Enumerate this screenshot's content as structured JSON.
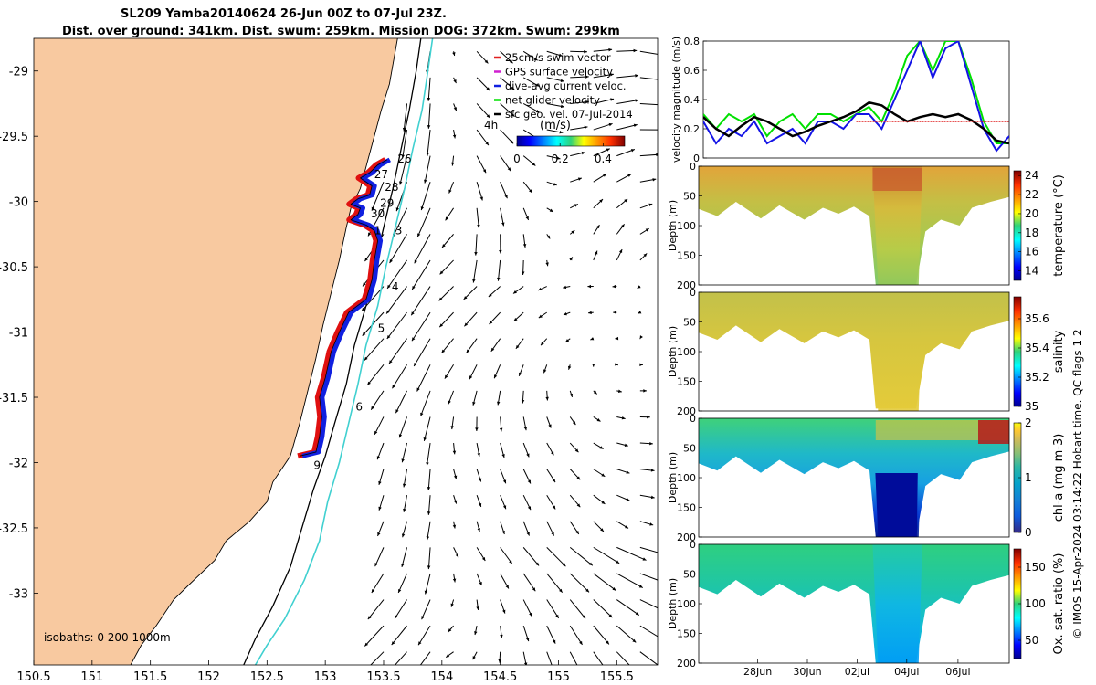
{
  "header": {
    "title_line1": "SL209 Yamba20140624 26-Jun 00Z to 07-Jul 23Z.",
    "title_line2": "Dist. over ground: 341km. Dist. swum: 259km. Mission DOG: 372km. Swum: 299km"
  },
  "colors": {
    "land": "#f8c9a0",
    "track_red": "#e01010",
    "track_blue": "#1020e0",
    "isobath_cyan": "#40d0d0",
    "net_velocity_green": "#00e000",
    "surface_velocity_blue": "#1414e6",
    "dive_avg_black": "#000000",
    "swim_red": "#e02020"
  },
  "chart_data": [
    {
      "type": "scatter",
      "id": "map",
      "x_ticks": [
        "150.5",
        "151",
        "151.5",
        "152",
        "152.5",
        "153",
        "153.5",
        "154",
        "154.5",
        "155",
        "155.5"
      ],
      "y_ticks": [
        "-29",
        "-29.5",
        "-30",
        "-30.5",
        "-31",
        "-31.5",
        "-32",
        "-32.5",
        "-33"
      ],
      "xlim": [
        150.5,
        155.85
      ],
      "ylim": [
        -33.55,
        -28.75
      ],
      "legend_items": [
        "25cm/s swim vector",
        "GPS surface velocity",
        "dive-avg current veloc.",
        "net glider velocity",
        "sfc geo. vel. 07-Jul-2014"
      ],
      "legend_colors": [
        "#e02020",
        "#d020d0",
        "#1020e0",
        "#00e000",
        "#000000"
      ],
      "colorbar_label": "(m/s)",
      "colorbar_ticks": [
        "0",
        "0.2",
        "0.4"
      ],
      "isobaths_label": "isobaths: 0   200  1000m",
      "scale_label": "4h",
      "track": [
        [
          153.53,
          -29.68
        ],
        [
          153.45,
          -29.72
        ],
        [
          153.38,
          -29.78
        ],
        [
          153.3,
          -29.82
        ],
        [
          153.4,
          -29.88
        ],
        [
          153.38,
          -29.95
        ],
        [
          153.28,
          -29.98
        ],
        [
          153.22,
          -30.02
        ],
        [
          153.3,
          -30.05
        ],
        [
          153.28,
          -30.1
        ],
        [
          153.22,
          -30.14
        ],
        [
          153.35,
          -30.18
        ],
        [
          153.42,
          -30.22
        ],
        [
          153.45,
          -30.3
        ],
        [
          153.42,
          -30.45
        ],
        [
          153.4,
          -30.6
        ],
        [
          153.35,
          -30.75
        ],
        [
          153.2,
          -30.85
        ],
        [
          153.12,
          -31.0
        ],
        [
          153.05,
          -31.15
        ],
        [
          153.0,
          -31.35
        ],
        [
          152.95,
          -31.5
        ],
        [
          152.97,
          -31.65
        ],
        [
          152.95,
          -31.8
        ],
        [
          152.92,
          -31.92
        ],
        [
          152.78,
          -31.95
        ]
      ],
      "day_labels": [
        {
          "label": "26",
          "lon": 153.62,
          "lat": -29.7
        },
        {
          "label": "27",
          "lon": 153.42,
          "lat": -29.82
        },
        {
          "label": "28",
          "lon": 153.51,
          "lat": -29.92
        },
        {
          "label": "29",
          "lon": 153.47,
          "lat": -30.04
        },
        {
          "label": "30",
          "lon": 153.39,
          "lat": -30.12
        },
        {
          "label": "1",
          "lon": 153.42,
          "lat": -30.25
        },
        {
          "label": "3",
          "lon": 153.6,
          "lat": -30.25
        },
        {
          "label": "4",
          "lon": 153.57,
          "lat": -30.68
        },
        {
          "label": "5",
          "lon": 153.45,
          "lat": -31.0
        },
        {
          "label": "6",
          "lon": 153.26,
          "lat": -31.6
        },
        {
          "label": "9",
          "lon": 152.9,
          "lat": -32.05
        }
      ],
      "coast": [
        [
          153.62,
          -28.75
        ],
        [
          153.58,
          -28.95
        ],
        [
          153.55,
          -29.1
        ],
        [
          153.48,
          -29.3
        ],
        [
          153.42,
          -29.5
        ],
        [
          153.36,
          -29.7
        ],
        [
          153.3,
          -29.9
        ],
        [
          153.22,
          -30.05
        ],
        [
          153.18,
          -30.2
        ],
        [
          153.12,
          -30.45
        ],
        [
          153.05,
          -30.7
        ],
        [
          152.98,
          -30.95
        ],
        [
          152.92,
          -31.2
        ],
        [
          152.85,
          -31.45
        ],
        [
          152.78,
          -31.7
        ],
        [
          152.7,
          -31.95
        ],
        [
          152.55,
          -32.15
        ],
        [
          152.5,
          -32.3
        ],
        [
          152.35,
          -32.45
        ],
        [
          152.15,
          -32.6
        ],
        [
          152.05,
          -32.75
        ],
        [
          151.85,
          -32.92
        ],
        [
          151.7,
          -33.05
        ],
        [
          151.55,
          -33.25
        ],
        [
          151.42,
          -33.4
        ],
        [
          151.33,
          -33.55
        ]
      ],
      "isobath_200": [
        [
          153.82,
          -28.75
        ],
        [
          153.78,
          -29.0
        ],
        [
          153.72,
          -29.3
        ],
        [
          153.65,
          -29.6
        ],
        [
          153.58,
          -29.9
        ],
        [
          153.5,
          -30.2
        ],
        [
          153.42,
          -30.5
        ],
        [
          153.35,
          -30.8
        ],
        [
          153.25,
          -31.1
        ],
        [
          153.18,
          -31.4
        ],
        [
          153.08,
          -31.7
        ],
        [
          153.0,
          -31.95
        ],
        [
          152.9,
          -32.2
        ],
        [
          152.8,
          -32.5
        ],
        [
          152.7,
          -32.8
        ],
        [
          152.55,
          -33.1
        ],
        [
          152.4,
          -33.35
        ],
        [
          152.3,
          -33.55
        ]
      ],
      "isobath_1000": [
        [
          153.92,
          -28.75
        ],
        [
          153.88,
          -29.0
        ],
        [
          153.83,
          -29.3
        ],
        [
          153.75,
          -29.6
        ],
        [
          153.68,
          -29.9
        ],
        [
          153.6,
          -30.2
        ],
        [
          153.52,
          -30.5
        ],
        [
          153.45,
          -30.8
        ],
        [
          153.35,
          -31.1
        ],
        [
          153.28,
          -31.4
        ],
        [
          153.2,
          -31.7
        ],
        [
          153.12,
          -32.0
        ],
        [
          153.02,
          -32.3
        ],
        [
          152.95,
          -32.6
        ],
        [
          152.82,
          -32.9
        ],
        [
          152.65,
          -33.2
        ],
        [
          152.5,
          -33.4
        ],
        [
          152.4,
          -33.55
        ]
      ]
    },
    {
      "type": "line",
      "id": "velocity",
      "ylabel": "velocity magnitude (m/s)",
      "ylim": [
        0,
        0.8
      ],
      "y_ticks": [
        "0",
        "0.2",
        "0.4",
        "0.6",
        "0.8"
      ],
      "xlim_days": [
        0,
        12
      ],
      "series": [
        {
          "color": "#00e000",
          "x": [
            0,
            0.5,
            1,
            1.5,
            2,
            2.5,
            3,
            3.5,
            4,
            4.5,
            5,
            5.5,
            6,
            6.5,
            7,
            7.5,
            8,
            8.5,
            9,
            9.5,
            10,
            10.5,
            11,
            11.5,
            12
          ],
          "values": [
            0.3,
            0.2,
            0.3,
            0.25,
            0.3,
            0.15,
            0.25,
            0.3,
            0.2,
            0.3,
            0.3,
            0.25,
            0.3,
            0.35,
            0.25,
            0.45,
            0.7,
            0.8,
            0.6,
            0.8,
            0.8,
            0.55,
            0.25,
            0.1,
            0.1
          ]
        },
        {
          "color": "#1414e6",
          "x": [
            0,
            0.5,
            1,
            1.5,
            2,
            2.5,
            3,
            3.5,
            4,
            4.5,
            5,
            5.5,
            6,
            6.5,
            7,
            7.5,
            8,
            8.5,
            9,
            9.5,
            10,
            10.5,
            11,
            11.5,
            12
          ],
          "values": [
            0.25,
            0.1,
            0.2,
            0.15,
            0.25,
            0.1,
            0.15,
            0.2,
            0.1,
            0.25,
            0.25,
            0.2,
            0.3,
            0.3,
            0.2,
            0.4,
            0.6,
            0.8,
            0.55,
            0.75,
            0.8,
            0.5,
            0.2,
            0.05,
            0.15
          ]
        },
        {
          "color": "#000000",
          "x": [
            0,
            0.5,
            1,
            1.5,
            2,
            2.5,
            3,
            3.5,
            4,
            4.5,
            5,
            5.5,
            6,
            6.5,
            7,
            7.5,
            8,
            8.5,
            9,
            9.5,
            10,
            10.5,
            11,
            11.5,
            12
          ],
          "values": [
            0.28,
            0.2,
            0.15,
            0.22,
            0.28,
            0.25,
            0.2,
            0.15,
            0.18,
            0.22,
            0.25,
            0.28,
            0.32,
            0.38,
            0.36,
            0.3,
            0.25,
            0.28,
            0.3,
            0.28,
            0.3,
            0.26,
            0.2,
            0.12,
            0.1
          ]
        },
        {
          "color": "#e02020",
          "x": [
            6,
            12
          ],
          "values": [
            0.25,
            0.25
          ]
        }
      ]
    },
    {
      "type": "heatmap",
      "id": "temperature",
      "ylabel": "Depth (m)",
      "colorbar_label": "temperature (°C)",
      "ylim": [
        200,
        0
      ],
      "y_ticks": [
        "0",
        "50",
        "100",
        "150",
        "200"
      ],
      "colorbar_ticks": [
        "14",
        "16",
        "18",
        "20",
        "22",
        "24"
      ],
      "clim": [
        13,
        24.5
      ]
    },
    {
      "type": "heatmap",
      "id": "salinity",
      "ylabel": "Depth (m)",
      "colorbar_label": "salinity",
      "ylim": [
        200,
        0
      ],
      "y_ticks": [
        "0",
        "50",
        "100",
        "150",
        "200"
      ],
      "colorbar_ticks": [
        "35",
        "35.2",
        "35.4",
        "35.6"
      ],
      "clim": [
        35.0,
        35.75
      ]
    },
    {
      "type": "heatmap",
      "id": "chla",
      "ylabel": "Depth (m)",
      "colorbar_label": "chl-a (mg m-3)",
      "ylim": [
        200,
        0
      ],
      "y_ticks": [
        "0",
        "50",
        "100",
        "150",
        "200"
      ],
      "colorbar_ticks": [
        "0",
        "1",
        "2"
      ],
      "clim": [
        0,
        2
      ]
    },
    {
      "type": "heatmap",
      "id": "oxygen",
      "ylabel": "Depth (m)",
      "colorbar_label": "Ox. sat. ratio (%)",
      "ylim": [
        200,
        0
      ],
      "y_ticks": [
        "0",
        "50",
        "100",
        "150",
        "200"
      ],
      "colorbar_ticks": [
        "50",
        "100",
        "150"
      ],
      "clim": [
        25,
        175
      ],
      "x_ticks": [
        "28Jun",
        "30Jun",
        "02Jul",
        "04Jul",
        "06Jul"
      ]
    }
  ],
  "credit": "© IMOS 15-Apr-2024 03:14:22 Hobart time. QC flags 1  2"
}
